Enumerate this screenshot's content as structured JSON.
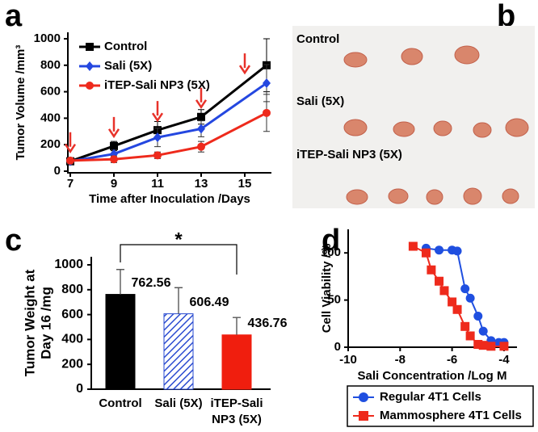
{
  "panel_labels": [
    "a",
    "b",
    "c",
    "d"
  ],
  "chart_data": [
    {
      "type": "line",
      "x": [
        7,
        9,
        11,
        13,
        16
      ],
      "xlim": [
        7,
        16
      ],
      "xticks": [
        7,
        9,
        11,
        13,
        15
      ],
      "ylim": [
        0,
        1000
      ],
      "yticks": [
        0,
        200,
        400,
        600,
        800,
        1000
      ],
      "x_label": "Time after Inoculation /Days",
      "y_label": "Tumor Volume /mm³",
      "legend": "upper left",
      "arrows_x": [
        7,
        9,
        11,
        13,
        15
      ],
      "arrow_color": "#e8322a",
      "series": [
        {
          "name": "Control",
          "color": "#000000",
          "marker": "square",
          "values": [
            75,
            190,
            310,
            410,
            800
          ],
          "errors": [
            20,
            35,
            65,
            55,
            200
          ]
        },
        {
          "name": "Sali (5X)",
          "color": "#2447e0",
          "marker": "diamond",
          "values": [
            75,
            130,
            255,
            320,
            665
          ],
          "errors": [
            20,
            30,
            70,
            60,
            140
          ]
        },
        {
          "name": "iTEP-Sali NP3 (5X)",
          "color": "#ee2a1c",
          "marker": "circle",
          "values": [
            80,
            90,
            120,
            185,
            440
          ],
          "errors": [
            20,
            25,
            25,
            40,
            140
          ]
        }
      ]
    },
    {
      "type": "bar",
      "categories": [
        "Control",
        "Sali (5X)",
        "iTEP-Sali NP3 (5X)"
      ],
      "values": [
        762.56,
        606.49,
        436.76
      ],
      "errors": [
        200,
        210,
        140
      ],
      "colors": [
        "#000000",
        "#2a4bd0",
        "#f01e0e"
      ],
      "hatch": [
        false,
        true,
        false
      ],
      "ylim": [
        0,
        1000
      ],
      "yticks": [
        0,
        200,
        400,
        600,
        800,
        1000
      ],
      "y_label": "Tumor Weight at Day 16 /mg",
      "annotation": "*"
    },
    {
      "type": "scatter",
      "xlim": [
        -10,
        -3.5
      ],
      "xticks": [
        -10,
        -8,
        -6,
        -4
      ],
      "ylim": [
        0,
        125
      ],
      "yticks": [
        0,
        50,
        100
      ],
      "x_label": "Sali Concentration /Log M",
      "y_label": "Cell Viability /%",
      "legend": "below",
      "series": [
        {
          "name": "Regular 4T1 Cells",
          "color": "#1f4fe0",
          "marker": "circle",
          "x": [
            -7,
            -6.5,
            -6,
            -5.8,
            -5.5,
            -5.3,
            -5,
            -4.8,
            -4.5,
            -4.2,
            -4
          ],
          "values": [
            105,
            103,
            103,
            102,
            62,
            52,
            33,
            17,
            7,
            5,
            5
          ]
        },
        {
          "name": "Mammosphere 4T1 Cells",
          "color": "#ee2a1c",
          "marker": "square",
          "x": [
            -7.5,
            -7,
            -6.8,
            -6.5,
            -6.3,
            -6,
            -5.8,
            -5.5,
            -5.3,
            -5,
            -4.8,
            -4.5,
            -4
          ],
          "values": [
            107,
            100,
            82,
            70,
            60,
            48,
            40,
            22,
            12,
            3,
            2,
            1,
            1
          ]
        }
      ]
    }
  ],
  "photo": {
    "labels": [
      "Control",
      "Sali (5X)",
      "iTEP-Sali NP3 (5X)"
    ]
  }
}
